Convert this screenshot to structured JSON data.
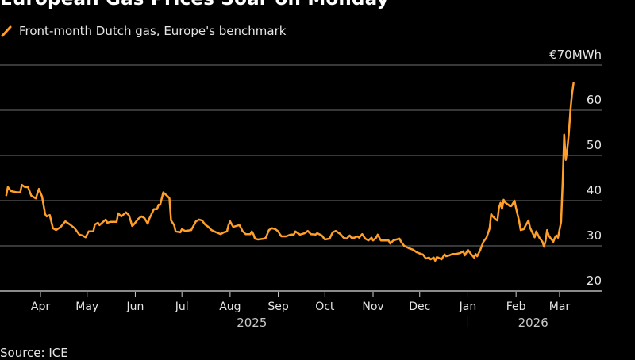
{
  "chart_data": {
    "type": "line",
    "title": "European Gas Prices Soar on Monday",
    "legend": [
      {
        "label": "Front-month Dutch gas, Europe's benchmark",
        "color": "#ff9f29",
        "icon": "slash-line-icon"
      }
    ],
    "source": "Source: ICE",
    "ylabel": "€70MWh",
    "ylim": [
      20,
      70
    ],
    "yticks": [
      20,
      30,
      40,
      50,
      60,
      70
    ],
    "ytick_labels": [
      "20",
      "30",
      "40",
      "50",
      "60",
      "€70MWh"
    ],
    "grid": true,
    "xlim": [
      "2025-03-10",
      "2026-03-28"
    ],
    "xticks": [
      {
        "date": "2025-04-01",
        "label": "Apr"
      },
      {
        "date": "2025-05-01",
        "label": "May"
      },
      {
        "date": "2025-06-01",
        "label": "Jun"
      },
      {
        "date": "2025-07-01",
        "label": "Jul"
      },
      {
        "date": "2025-08-01",
        "label": "Aug"
      },
      {
        "date": "2025-09-01",
        "label": "Sep"
      },
      {
        "date": "2025-10-01",
        "label": "Oct"
      },
      {
        "date": "2025-11-01",
        "label": "Nov"
      },
      {
        "date": "2025-12-01",
        "label": "Dec"
      },
      {
        "date": "2026-01-01",
        "label": "Jan"
      },
      {
        "date": "2026-02-01",
        "label": "Feb"
      },
      {
        "date": "2026-03-01",
        "label": "Mar"
      }
    ],
    "year_labels": [
      {
        "label": "2025",
        "date": "2025-08-15"
      },
      {
        "label": "2026",
        "date": "2026-02-12"
      }
    ],
    "year_separator": {
      "date": "2026-01-01",
      "label": "|"
    },
    "series": [
      {
        "name": "Front-month Dutch gas, Europe's benchmark",
        "color": "#ff9f29",
        "x": [
          "2025-03-10",
          "2025-03-11",
          "2025-03-13",
          "2025-03-16",
          "2025-03-19",
          "2025-03-20",
          "2025-03-22",
          "2025-03-24",
          "2025-03-26",
          "2025-03-29",
          "2025-03-31",
          "2025-04-02",
          "2025-04-04",
          "2025-04-05",
          "2025-04-07",
          "2025-04-09",
          "2025-04-11",
          "2025-04-14",
          "2025-04-17",
          "2025-04-20",
          "2025-04-23",
          "2025-04-26",
          "2025-04-28",
          "2025-04-30",
          "2025-05-02",
          "2025-05-05",
          "2025-05-06",
          "2025-05-08",
          "2025-05-09",
          "2025-05-13",
          "2025-05-14",
          "2025-05-16",
          "2025-05-20",
          "2025-05-21",
          "2025-05-23",
          "2025-05-26",
          "2025-05-28",
          "2025-05-30",
          "2025-05-31",
          "2025-06-03",
          "2025-06-05",
          "2025-06-07",
          "2025-06-09",
          "2025-06-10",
          "2025-06-13",
          "2025-06-15",
          "2025-06-16",
          "2025-06-17",
          "2025-06-19",
          "2025-06-22",
          "2025-06-23",
          "2025-06-24",
          "2025-06-26",
          "2025-06-27",
          "2025-06-30",
          "2025-07-01",
          "2025-07-03",
          "2025-07-07",
          "2025-07-10",
          "2025-07-12",
          "2025-07-14",
          "2025-07-16",
          "2025-07-18",
          "2025-07-20",
          "2025-07-23",
          "2025-07-26",
          "2025-07-28",
          "2025-07-30",
          "2025-07-31",
          "2025-08-01",
          "2025-08-03",
          "2025-08-05",
          "2025-08-07",
          "2025-08-09",
          "2025-08-11",
          "2025-08-14",
          "2025-08-15",
          "2025-08-16",
          "2025-08-17",
          "2025-08-19",
          "2025-08-23",
          "2025-08-24",
          "2025-08-26",
          "2025-08-28",
          "2025-08-30",
          "2025-09-01",
          "2025-09-02",
          "2025-09-03",
          "2025-09-06",
          "2025-09-09",
          "2025-09-11",
          "2025-09-12",
          "2025-09-15",
          "2025-09-18",
          "2025-09-20",
          "2025-09-22",
          "2025-09-25",
          "2025-09-26",
          "2025-09-29",
          "2025-10-01",
          "2025-10-04",
          "2025-10-06",
          "2025-10-08",
          "2025-10-11",
          "2025-10-13",
          "2025-10-15",
          "2025-10-17",
          "2025-10-18",
          "2025-10-20",
          "2025-10-22",
          "2025-10-23",
          "2025-10-25",
          "2025-10-27",
          "2025-10-29",
          "2025-10-31",
          "2025-11-01",
          "2025-11-03",
          "2025-11-04",
          "2025-11-06",
          "2025-11-08",
          "2025-11-11",
          "2025-11-12",
          "2025-11-14",
          "2025-11-16",
          "2025-11-18",
          "2025-11-19",
          "2025-11-21",
          "2025-11-24",
          "2025-11-27",
          "2025-11-29",
          "2025-12-02",
          "2025-12-03",
          "2025-12-05",
          "2025-12-07",
          "2025-12-08",
          "2025-12-10",
          "2025-12-11",
          "2025-12-12",
          "2025-12-13",
          "2025-12-15",
          "2025-12-17",
          "2025-12-18",
          "2025-12-20",
          "2025-12-22",
          "2025-12-24",
          "2025-12-27",
          "2025-12-29",
          "2025-12-30",
          "2026-01-01",
          "2026-01-03",
          "2026-01-05",
          "2026-01-06",
          "2026-01-07",
          "2026-01-09",
          "2026-01-11",
          "2026-01-13",
          "2026-01-15",
          "2026-01-16",
          "2026-01-17",
          "2026-01-19",
          "2026-01-20",
          "2026-01-21",
          "2026-01-22",
          "2026-01-23",
          "2026-01-24",
          "2026-01-25",
          "2026-01-27",
          "2026-01-28",
          "2026-01-29",
          "2026-01-31",
          "2026-02-01",
          "2026-02-03",
          "2026-02-04",
          "2026-02-06",
          "2026-02-07",
          "2026-02-09",
          "2026-02-10",
          "2026-02-11",
          "2026-02-13",
          "2026-02-14",
          "2026-02-16",
          "2026-02-18",
          "2026-02-19",
          "2026-02-20",
          "2026-02-21",
          "2026-02-22",
          "2026-02-23",
          "2026-02-25",
          "2026-02-26",
          "2026-02-27",
          "2026-02-28",
          "2026-03-02",
          "2026-03-03",
          "2026-03-04",
          "2026-03-05",
          "2026-03-06",
          "2026-03-07",
          "2026-03-08",
          "2026-03-09",
          "2026-03-10"
        ],
        "values": [
          41.2,
          43.0,
          42.1,
          41.9,
          41.8,
          43.5,
          43.0,
          43.0,
          41.1,
          40.5,
          42.6,
          40.9,
          37.0,
          36.5,
          36.8,
          33.9,
          33.5,
          34.2,
          35.4,
          34.7,
          33.9,
          32.5,
          32.3,
          31.9,
          33.2,
          33.2,
          34.7,
          35.1,
          34.6,
          35.8,
          35.1,
          35.3,
          35.3,
          37.2,
          36.5,
          37.4,
          36.7,
          34.4,
          34.7,
          36.0,
          36.5,
          36.1,
          34.9,
          36.0,
          38.1,
          38.1,
          39.1,
          39.1,
          41.8,
          40.9,
          40.5,
          35.6,
          34.6,
          33.2,
          33.0,
          33.7,
          33.3,
          33.5,
          35.4,
          35.8,
          35.6,
          34.7,
          34.2,
          33.5,
          33.0,
          32.6,
          33.0,
          33.2,
          34.6,
          35.4,
          34.2,
          34.4,
          34.6,
          33.3,
          32.6,
          32.6,
          33.2,
          32.6,
          31.6,
          31.4,
          31.6,
          31.8,
          33.5,
          33.9,
          33.7,
          33.2,
          32.6,
          32.1,
          32.1,
          32.5,
          32.5,
          33.2,
          32.5,
          32.8,
          33.3,
          32.6,
          32.5,
          32.8,
          32.3,
          31.4,
          31.6,
          33.0,
          33.3,
          32.6,
          31.8,
          31.6,
          32.3,
          31.8,
          31.8,
          32.1,
          31.8,
          32.6,
          31.6,
          31.2,
          31.8,
          31.2,
          31.8,
          32.5,
          31.2,
          31.2,
          31.2,
          30.5,
          31.2,
          31.4,
          31.6,
          30.9,
          30.0,
          29.5,
          29.1,
          28.6,
          28.2,
          28.1,
          27.2,
          27.4,
          27.0,
          27.4,
          26.7,
          27.5,
          27.4,
          27.0,
          28.1,
          27.7,
          27.9,
          28.2,
          28.2,
          28.4,
          28.8,
          27.9,
          29.1,
          28.2,
          27.4,
          28.2,
          27.7,
          29.1,
          30.9,
          31.8,
          33.9,
          37.0,
          36.5,
          35.8,
          35.6,
          38.4,
          39.5,
          38.2,
          40.2,
          39.6,
          39.1,
          38.8,
          38.8,
          40.0,
          38.4,
          35.4,
          33.5,
          33.7,
          34.4,
          35.6,
          34.0,
          33.3,
          31.9,
          33.2,
          31.8,
          30.9,
          29.8,
          31.2,
          33.5,
          32.3,
          31.8,
          30.9,
          31.8,
          32.3,
          31.8,
          35.3,
          44.0,
          54.6,
          49.0,
          51.5,
          55.0,
          60.0,
          63.5,
          66.0
        ]
      }
    ]
  }
}
